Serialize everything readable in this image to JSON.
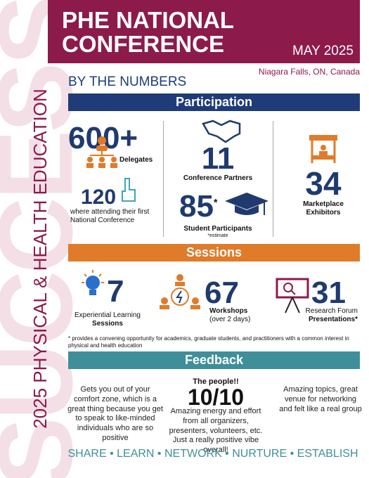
{
  "header": {
    "title_line1": "PHE NATIONAL",
    "title_line2": "CONFERENCE",
    "date": "MAY 2025",
    "location": "Niagara Falls, ON, Canada",
    "subtitle": "BY THE NUMBERS"
  },
  "side_text": "2025 PHYSICAL & HEALTH EDUCATION",
  "watermark": "SUCCESS",
  "participation": {
    "heading": "Participation",
    "delegates": {
      "number": "600+",
      "label": "Delegates"
    },
    "first_time": {
      "number": 120,
      "label": "where attending their first National Conference"
    },
    "partners": {
      "number": 11,
      "label": "Conference Partners"
    },
    "students": {
      "number": 85,
      "mark": "*",
      "label": "Student Participants",
      "note": "*estimate"
    },
    "exhibitors": {
      "number": 34,
      "label": "Marketplace Exhibitors"
    }
  },
  "sessions": {
    "heading": "Sessions",
    "experiential": {
      "number": 7,
      "label": "Experiential Learning",
      "label_bold": "Sessions"
    },
    "workshops": {
      "number": 67,
      "label_bold": "Workshops",
      "label": "(over 2 days)"
    },
    "research": {
      "number": 31,
      "label": "Research Forum",
      "label_bold": "Presentations*"
    },
    "footnote": "* provides a convening opportunity for academics, graduate students, and practitioners with a common interest in physical and health education"
  },
  "feedback": {
    "heading": "Feedback",
    "quotes": [
      {
        "text": "Gets you out of your comfort zone, which is a great thing because you get to speak to like-minded individuals who are so positive"
      },
      {
        "lead": "The people!!",
        "score": "10/10",
        "text": "Amazing energy and effort from all organizers, presenters, volunteers, etc. Just a really positive vibe overall!"
      },
      {
        "text": "Amazing topics, great venue for networking and felt like a real group"
      }
    ]
  },
  "footer": "SHARE • LEARN • NETWORK • NURTURE • ESTABLISH"
}
